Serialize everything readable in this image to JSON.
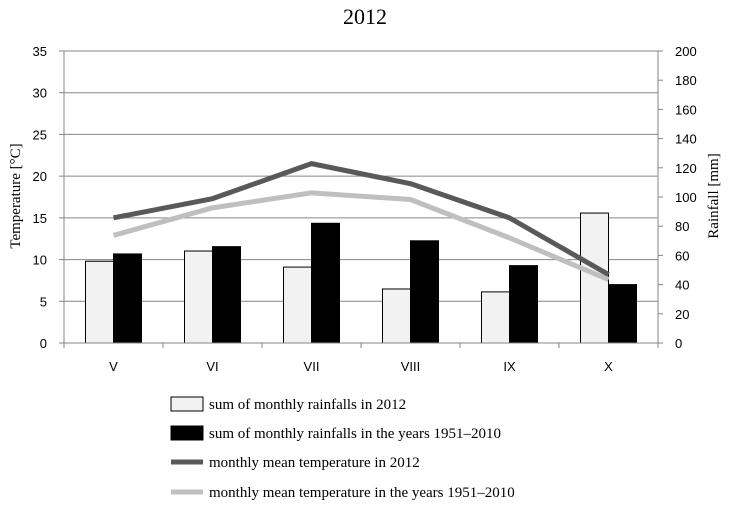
{
  "chart_data": {
    "type": "bar",
    "title": "2012",
    "categories": [
      "V",
      "VI",
      "VII",
      "VIII",
      "IX",
      "X"
    ],
    "y_left": {
      "label": "Temperature [°C]",
      "lim": [
        0,
        35
      ],
      "ticks": [
        0,
        5,
        10,
        15,
        20,
        25,
        30,
        35
      ]
    },
    "y_right": {
      "label": "Rainfall [mm]",
      "lim": [
        0,
        200
      ],
      "ticks": [
        0,
        20,
        40,
        60,
        80,
        100,
        120,
        140,
        160,
        180,
        200
      ]
    },
    "grid": "horizontal",
    "legend_position": "bottom",
    "series": [
      {
        "name": "sum of monthly rainfalls in 2012",
        "kind": "bar",
        "axis": "right",
        "color": "#f2f2f2",
        "values": [
          56,
          63,
          52,
          37,
          35,
          89
        ]
      },
      {
        "name": "sum of monthly rainfalls in the years 1951–2010",
        "kind": "bar",
        "axis": "right",
        "color": "#000000",
        "values": [
          61,
          66,
          82,
          70,
          53,
          40
        ]
      },
      {
        "name": "monthly mean temperature in 2012",
        "kind": "line",
        "axis": "left",
        "color": "#595959",
        "values": [
          15.0,
          17.3,
          21.5,
          19.1,
          15.0,
          8.2
        ]
      },
      {
        "name": "monthly mean temperature in the years 1951–2010",
        "kind": "line",
        "axis": "left",
        "color": "#bfbfbf",
        "values": [
          12.9,
          16.2,
          18.0,
          17.2,
          12.6,
          7.6
        ]
      }
    ]
  }
}
